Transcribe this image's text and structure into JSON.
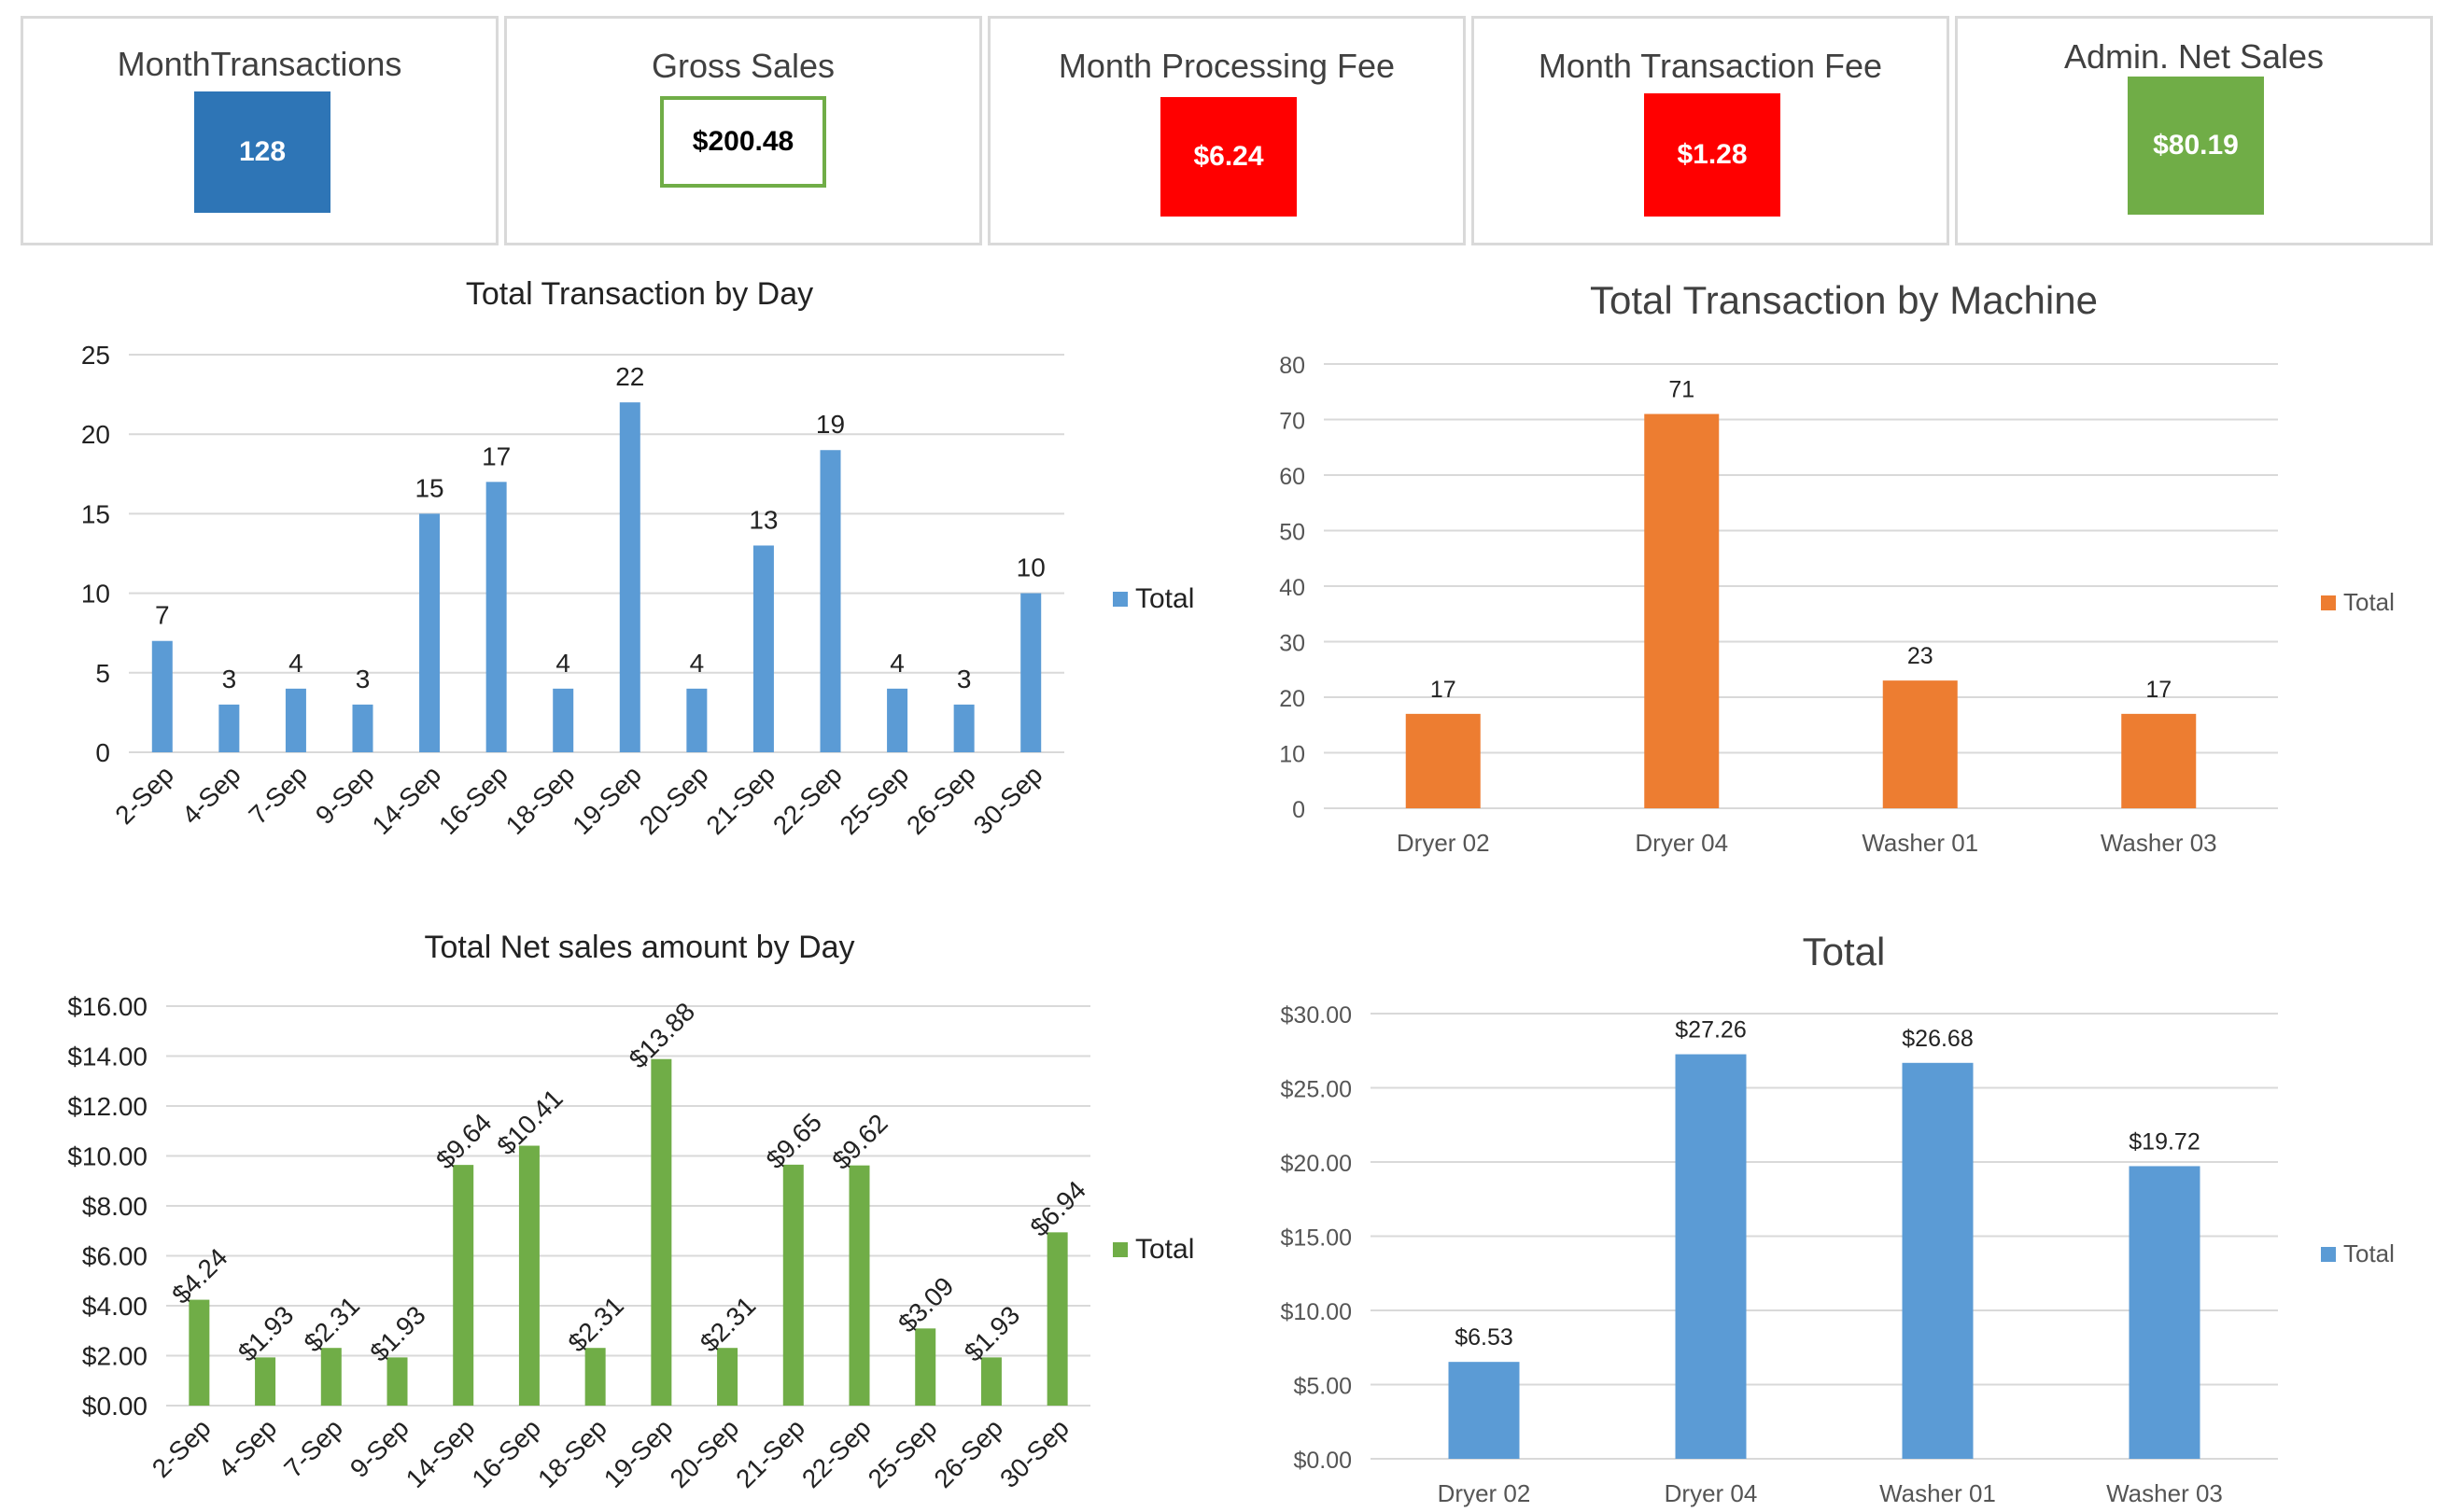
{
  "kpis": [
    {
      "title": "MonthTransactions",
      "value": "128",
      "fill": "#2e75b6",
      "text_color": "#ffffff"
    },
    {
      "title": "Gross Sales",
      "value": "$200.48",
      "fill": "#ffffff",
      "border": "#70ad47",
      "text_color": "#000000"
    },
    {
      "title": "Month Processing Fee",
      "value": "$6.24",
      "fill": "#ff0000",
      "text_color": "#ffffff"
    },
    {
      "title": "Month Transaction Fee",
      "value": "$1.28",
      "fill": "#ff0000",
      "text_color": "#ffffff"
    },
    {
      "title": "Admin. Net Sales",
      "value": "$80.19",
      "fill": "#70ad47",
      "text_color": "#ffffff"
    }
  ],
  "colors": {
    "blue": "#5b9bd5",
    "orange": "#ed7d31",
    "green": "#70ad47",
    "grid": "#d9d9d9"
  },
  "chart_data": [
    {
      "id": "tx-by-day",
      "type": "bar",
      "title": "Total Transaction by Day",
      "categories": [
        "2-Sep",
        "4-Sep",
        "7-Sep",
        "9-Sep",
        "14-Sep",
        "16-Sep",
        "18-Sep",
        "19-Sep",
        "20-Sep",
        "21-Sep",
        "22-Sep",
        "25-Sep",
        "26-Sep",
        "30-Sep"
      ],
      "series": [
        {
          "name": "Total",
          "values": [
            7,
            3,
            4,
            3,
            15,
            17,
            4,
            22,
            4,
            13,
            19,
            4,
            3,
            10
          ]
        }
      ],
      "ylim": [
        0,
        25
      ],
      "yticks": [
        "0",
        "5",
        "10",
        "15",
        "20",
        "25"
      ],
      "data_labels": [
        "7",
        "3",
        "4",
        "3",
        "15",
        "17",
        "4",
        "22",
        "4",
        "13",
        "19",
        "4",
        "3",
        "10"
      ],
      "legend": "right",
      "color": "#5b9bd5"
    },
    {
      "id": "tx-by-machine",
      "type": "bar",
      "title": "Total Transaction by Machine",
      "categories": [
        "Dryer 02",
        "Dryer 04",
        "Washer 01",
        "Washer 03"
      ],
      "series": [
        {
          "name": "Total",
          "values": [
            17,
            71,
            23,
            17
          ]
        }
      ],
      "ylim": [
        0,
        80
      ],
      "yticks": [
        "0",
        "10",
        "20",
        "30",
        "40",
        "50",
        "60",
        "70",
        "80"
      ],
      "data_labels": [
        "17",
        "71",
        "23",
        "17"
      ],
      "legend": "right",
      "color": "#ed7d31"
    },
    {
      "id": "net-by-day",
      "type": "bar",
      "title": "Total Net sales amount by Day",
      "categories": [
        "2-Sep",
        "4-Sep",
        "7-Sep",
        "9-Sep",
        "14-Sep",
        "16-Sep",
        "18-Sep",
        "19-Sep",
        "20-Sep",
        "21-Sep",
        "22-Sep",
        "25-Sep",
        "26-Sep",
        "30-Sep"
      ],
      "series": [
        {
          "name": "Total",
          "values": [
            4.24,
            1.93,
            2.31,
            1.93,
            9.64,
            10.41,
            2.31,
            13.88,
            2.31,
            9.65,
            9.62,
            3.09,
            1.93,
            6.94
          ]
        }
      ],
      "ylim": [
        0,
        16
      ],
      "yticks": [
        "$0.00",
        "$2.00",
        "$4.00",
        "$6.00",
        "$8.00",
        "$10.00",
        "$12.00",
        "$14.00",
        "$16.00"
      ],
      "data_labels": [
        "$4.24",
        "$1.93",
        "$2.31",
        "$1.93",
        "$9.64",
        "$10.41",
        "$2.31",
        "$13.88",
        "$2.31",
        "$9.65",
        "$9.62",
        "$3.09",
        "$1.93",
        "$6.94"
      ],
      "legend": "right",
      "color": "#70ad47"
    },
    {
      "id": "net-by-machine",
      "type": "bar",
      "title": "Total",
      "categories": [
        "Dryer 02",
        "Dryer 04",
        "Washer 01",
        "Washer 03"
      ],
      "series": [
        {
          "name": "Total",
          "values": [
            6.53,
            27.26,
            26.68,
            19.72
          ]
        }
      ],
      "ylim": [
        0,
        30
      ],
      "yticks": [
        "$0.00",
        "$5.00",
        "$10.00",
        "$15.00",
        "$20.00",
        "$25.00",
        "$30.00"
      ],
      "data_labels": [
        "$6.53",
        "$27.26",
        "$26.68",
        "$19.72"
      ],
      "legend": "right",
      "color": "#5b9bd5"
    }
  ]
}
